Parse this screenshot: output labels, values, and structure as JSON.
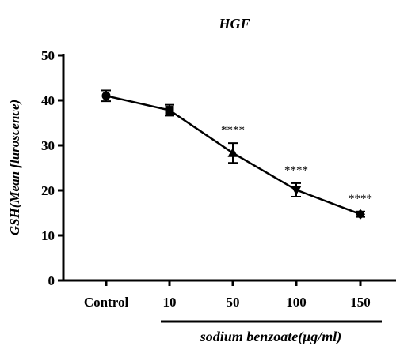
{
  "chart_data": {
    "type": "line",
    "title": "HGF",
    "xlabel": "",
    "ylabel": "GSH(Mean fluroscence)",
    "group_label": "sodium benzoate(μg/ml)",
    "categories": [
      "Control",
      "10",
      "50",
      "100",
      "150"
    ],
    "series": [
      {
        "values": [
          41,
          37.8,
          28.3,
          20.1,
          14.7
        ],
        "errors": [
          1.2,
          1.2,
          2.2,
          1.5,
          0.6
        ],
        "markers": [
          "circle",
          "square",
          "triangle-up",
          "triangle-down",
          "diamond"
        ],
        "annotations": [
          "",
          "",
          "****",
          "****",
          "****"
        ]
      }
    ],
    "ylim": [
      0,
      50
    ],
    "yticks": [
      0,
      10,
      20,
      30,
      40,
      50
    ],
    "grid": false,
    "legend": "none"
  }
}
